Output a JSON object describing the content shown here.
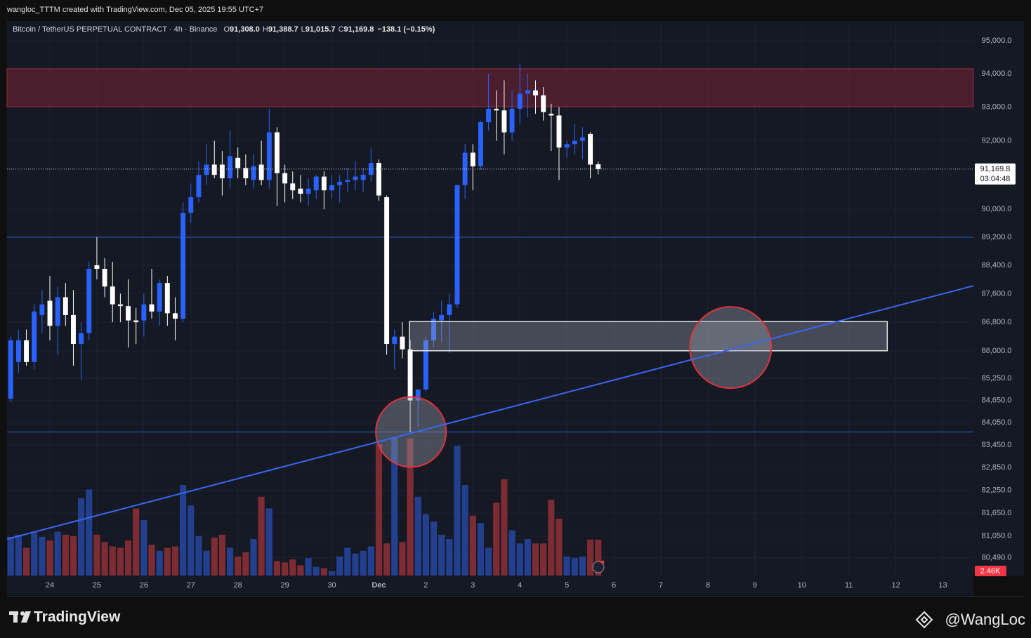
{
  "header": {
    "credit": "wangloc_TTTM created with TradingView.com, Dec 05, 2025 19:55 UTC+7"
  },
  "legend": {
    "symbol": "Bitcoin / TetherUS PERPETUAL CONTRACT · 4h · Binance",
    "items": [
      {
        "key": "O",
        "label": "91,308.0"
      },
      {
        "key": "H",
        "label": "91,388.7"
      },
      {
        "key": "L",
        "label": "91,015.7"
      },
      {
        "key": "C",
        "label": "91,169.8"
      }
    ],
    "change": "−138.1 (−0.15%)"
  },
  "chart_data": {
    "type": "candlestick",
    "log_scale": true,
    "grid": true,
    "up_color": "#2962ff",
    "down_color": "#ffffff",
    "volume_up_color": "#23408f",
    "volume_down_color": "#7e2c33",
    "x": [
      0,
      1,
      2,
      3,
      4,
      5,
      6,
      7,
      8,
      9,
      10,
      11,
      12,
      13,
      14,
      15,
      16,
      17,
      18,
      19,
      20,
      21,
      22,
      23,
      24,
      25,
      26,
      27,
      28,
      29,
      30,
      31,
      32,
      33,
      34,
      35,
      36,
      37,
      38,
      39,
      40,
      41,
      42,
      43,
      44,
      45,
      46,
      47,
      48,
      49,
      50,
      51,
      52,
      53,
      54,
      55,
      56,
      57,
      58,
      59,
      60,
      61,
      62,
      63,
      64,
      65,
      66,
      67,
      68,
      69,
      70,
      71,
      72,
      73,
      74,
      75
    ],
    "open": [
      84700,
      85700,
      86300,
      85700,
      87000,
      87400,
      86700,
      87500,
      87000,
      86200,
      86500,
      88400,
      88300,
      87800,
      87300,
      87250,
      86850,
      86850,
      87300,
      87100,
      87900,
      87050,
      86900,
      89900,
      90350,
      91000,
      91300,
      91300,
      90900,
      91500,
      91200,
      90850,
      91300,
      90850,
      92250,
      91050,
      90750,
      90600,
      90450,
      90550,
      90950,
      90550,
      90700,
      90800,
      90850,
      90850,
      91000,
      91350,
      90350,
      86200,
      86400,
      86050,
      84650,
      84950,
      86300,
      86850,
      87000,
      87300,
      90700,
      91650,
      91250,
      92550,
      92950,
      92900,
      92250,
      92950,
      93400,
      93500,
      93350,
      92800,
      92750,
      91800,
      91900,
      92000,
      92200,
      91308.0
    ],
    "high": [
      86400,
      86600,
      86600,
      87300,
      87700,
      88100,
      87800,
      87900,
      87700,
      86800,
      88500,
      89200,
      88600,
      88500,
      87600,
      88000,
      87200,
      87600,
      88300,
      88000,
      88100,
      87500,
      90200,
      90750,
      91400,
      91900,
      92000,
      91700,
      92300,
      91800,
      91600,
      91600,
      92000,
      92950,
      92400,
      91300,
      91100,
      91000,
      90900,
      91000,
      91100,
      91000,
      91000,
      91200,
      91400,
      91200,
      91800,
      91450,
      90400,
      86600,
      86800,
      86300,
      84800,
      86400,
      87100,
      87400,
      87600,
      90700,
      91900,
      91900,
      92600,
      94000,
      93500,
      93800,
      93500,
      94300,
      94000,
      93800,
      93600,
      93100,
      93000,
      92000,
      92500,
      92400,
      92250,
      91388.7
    ],
    "low": [
      84600,
      85400,
      85600,
      85500,
      86500,
      86300,
      85900,
      86700,
      85600,
      85200,
      86300,
      88000,
      87500,
      86800,
      86800,
      86100,
      86200,
      86400,
      86900,
      86700,
      86700,
      86300,
      86800,
      89600,
      90200,
      90700,
      90900,
      90400,
      90600,
      90900,
      90700,
      90600,
      90700,
      90600,
      90100,
      90200,
      90300,
      90200,
      90100,
      90300,
      90000,
      90300,
      90200,
      90500,
      90550,
      90500,
      90800,
      90250,
      85900,
      85500,
      85800,
      83800,
      83950,
      84900,
      86100,
      86250,
      85950,
      87200,
      90300,
      90550,
      91150,
      92300,
      92000,
      91600,
      92000,
      92500,
      92700,
      92800,
      92600,
      91700,
      90850,
      91500,
      91600,
      91450,
      90900,
      91015.7
    ],
    "close": [
      86300,
      86300,
      85700,
      87100,
      87300,
      86700,
      87500,
      87000,
      86200,
      86500,
      88300,
      88300,
      87800,
      87300,
      87250,
      86850,
      86800,
      87300,
      87100,
      87900,
      87050,
      86900,
      89900,
      90350,
      91000,
      91300,
      91000,
      90900,
      91550,
      91200,
      90900,
      91250,
      90850,
      92250,
      91050,
      90750,
      90550,
      90450,
      90600,
      90950,
      90550,
      90700,
      90800,
      90850,
      90950,
      91000,
      91350,
      90400,
      86200,
      86400,
      86050,
      84650,
      84950,
      86300,
      86900,
      87000,
      87300,
      90700,
      91650,
      91250,
      92550,
      92950,
      92900,
      92250,
      92950,
      93400,
      93500,
      93350,
      92850,
      92750,
      91800,
      91900,
      92000,
      92100,
      91300,
      91169.8
    ],
    "volume": [
      2650,
      2800,
      1900,
      3000,
      2650,
      2400,
      3000,
      2800,
      2700,
      5300,
      5900,
      2800,
      2300,
      2000,
      1900,
      2400,
      4600,
      3800,
      2100,
      1700,
      1900,
      2000,
      6200,
      4800,
      2700,
      1700,
      2600,
      2800,
      1900,
      1300,
      1600,
      2500,
      5400,
      4600,
      1000,
      900,
      1100,
      700,
      1200,
      600,
      500,
      300,
      1300,
      1900,
      1500,
      1700,
      2000,
      9000,
      2200,
      9500,
      2300,
      9400,
      5400,
      4200,
      3700,
      2800,
      2500,
      8900,
      6200,
      4100,
      3600,
      1900,
      5000,
      6600,
      3100,
      2200,
      2500,
      2200,
      2200,
      5200,
      3900,
      1300,
      1200,
      1300,
      2460,
      2460
    ],
    "volume_badge": "2.46K",
    "volume_ylim": [
      0,
      38000
    ],
    "price_label": "91,169.8",
    "countdown": "03:04:48",
    "xlim": [
      -0.47,
      122.9
    ],
    "xticks": [
      {
        "value": 5,
        "label": "24"
      },
      {
        "value": 11,
        "label": "25"
      },
      {
        "value": 17,
        "label": "26"
      },
      {
        "value": 23,
        "label": "27"
      },
      {
        "value": 29,
        "label": "28"
      },
      {
        "value": 35,
        "label": "29"
      },
      {
        "value": 41,
        "label": "30"
      },
      {
        "value": 47,
        "label": "Dec"
      },
      {
        "value": 53,
        "label": "2"
      },
      {
        "value": 59,
        "label": "3"
      },
      {
        "value": 65,
        "label": "4"
      },
      {
        "value": 71,
        "label": "5"
      },
      {
        "value": 77,
        "label": "6"
      },
      {
        "value": 83,
        "label": "7"
      },
      {
        "value": 89,
        "label": "8"
      },
      {
        "value": 95,
        "label": "9"
      },
      {
        "value": 101,
        "label": "10"
      },
      {
        "value": 107,
        "label": "11"
      },
      {
        "value": 113,
        "label": "12"
      },
      {
        "value": 119,
        "label": "13"
      }
    ],
    "ylim": [
      80030,
      95600
    ],
    "yticks": [
      {
        "value": 95000,
        "label": "95,000.0"
      },
      {
        "value": 94000,
        "label": "94,000.0"
      },
      {
        "value": 93000,
        "label": "93,000.0"
      },
      {
        "value": 92000,
        "label": "92,000.0"
      },
      {
        "value": 90000,
        "label": "90,000.0"
      },
      {
        "value": 89200,
        "label": "89,200.0"
      },
      {
        "value": 88400,
        "label": "88,400.0"
      },
      {
        "value": 87600,
        "label": "87,600.0"
      },
      {
        "value": 86800,
        "label": "86,800.0"
      },
      {
        "value": 86000,
        "label": "86,000.0"
      },
      {
        "value": 85250,
        "label": "85,250.0"
      },
      {
        "value": 84650,
        "label": "84,650.0"
      },
      {
        "value": 84050,
        "label": "84,050.0"
      },
      {
        "value": 83450,
        "label": "83,450.0"
      },
      {
        "value": 82850,
        "label": "82,850.0"
      },
      {
        "value": 82250,
        "label": "82,250.0"
      },
      {
        "value": 81650,
        "label": "81,650.0"
      },
      {
        "value": 81050,
        "label": "81,050.0"
      },
      {
        "value": 80490,
        "label": "80,490.0"
      }
    ],
    "drawings": {
      "hlines": [
        89200,
        83800
      ],
      "red_zone": [
        93010,
        94150
      ],
      "box_zone": {
        "x": [
          50.9,
          111.9
        ],
        "y": [
          86010,
          86820
        ]
      },
      "trendline": {
        "x": [
          -0.47,
          122.9
        ],
        "y": [
          80970,
          87820
        ]
      },
      "circles": [
        {
          "x": 51.1,
          "y": 83800
        },
        {
          "x": 91.9,
          "y": 86100
        }
      ]
    }
  },
  "footer": {
    "brand": "TradingView",
    "author": "@WangLoc"
  }
}
